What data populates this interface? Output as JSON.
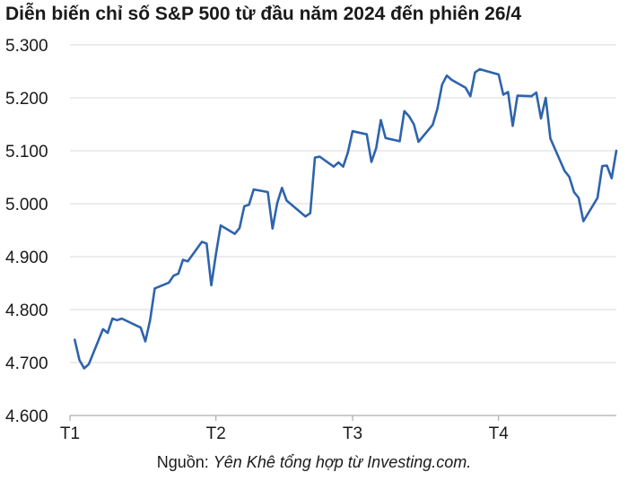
{
  "title": "Diễn biến chỉ số S&P 500 từ đầu năm 2024 đến phiên 26/4",
  "source": {
    "prefix": "Nguồn: ",
    "text": "Yên Khê tổng hợp từ Investing.com."
  },
  "chart_data": {
    "type": "line",
    "title": "Diễn biến chỉ số S&P 500 từ đầu năm 2024 đến phiên 26/4",
    "xlabel": "",
    "ylabel": "",
    "x_ticks": [
      "T1",
      "T2",
      "T3",
      "T4"
    ],
    "x_tick_dates": [
      "2024-01-01",
      "2024-02-01",
      "2024-03-01",
      "2024-04-01"
    ],
    "x_range": [
      "2024-01-01",
      "2024-04-26"
    ],
    "yticks": [
      4600,
      4700,
      4800,
      4900,
      5000,
      5100,
      5200,
      5300
    ],
    "ytick_labels": [
      "4.600",
      "4.700",
      "4.800",
      "4.900",
      "5.000",
      "5.100",
      "5.200",
      "5.300"
    ],
    "ylim": [
      4600,
      5300
    ],
    "grid": "horizontal",
    "line_color": "#2e63ad",
    "series": [
      {
        "x": [
          "2024-01-02",
          "2024-01-03",
          "2024-01-04",
          "2024-01-05",
          "2024-01-08",
          "2024-01-09",
          "2024-01-10",
          "2024-01-11",
          "2024-01-12",
          "2024-01-16",
          "2024-01-17",
          "2024-01-18",
          "2024-01-19",
          "2024-01-22",
          "2024-01-23",
          "2024-01-24",
          "2024-01-25",
          "2024-01-26",
          "2024-01-29",
          "2024-01-30",
          "2024-01-31",
          "2024-02-01",
          "2024-02-02",
          "2024-02-05",
          "2024-02-06",
          "2024-02-07",
          "2024-02-08",
          "2024-02-09",
          "2024-02-12",
          "2024-02-13",
          "2024-02-14",
          "2024-02-15",
          "2024-02-16",
          "2024-02-20",
          "2024-02-21",
          "2024-02-22",
          "2024-02-23",
          "2024-02-26",
          "2024-02-27",
          "2024-02-28",
          "2024-02-29",
          "2024-03-01",
          "2024-03-04",
          "2024-03-05",
          "2024-03-06",
          "2024-03-07",
          "2024-03-08",
          "2024-03-11",
          "2024-03-12",
          "2024-03-13",
          "2024-03-14",
          "2024-03-15",
          "2024-03-18",
          "2024-03-19",
          "2024-03-20",
          "2024-03-21",
          "2024-03-22",
          "2024-03-25",
          "2024-03-26",
          "2024-03-27",
          "2024-03-28",
          "2024-04-01",
          "2024-04-02",
          "2024-04-03",
          "2024-04-04",
          "2024-04-05",
          "2024-04-08",
          "2024-04-09",
          "2024-04-10",
          "2024-04-11",
          "2024-04-12",
          "2024-04-15",
          "2024-04-16",
          "2024-04-17",
          "2024-04-18",
          "2024-04-19",
          "2024-04-22",
          "2024-04-23",
          "2024-04-24",
          "2024-04-25",
          "2024-04-26"
        ],
        "y": [
          4743,
          4705,
          4689,
          4697,
          4763,
          4756,
          4783,
          4780,
          4783,
          4766,
          4740,
          4780,
          4840,
          4851,
          4864,
          4868,
          4894,
          4891,
          4928,
          4925,
          4846,
          4906,
          4959,
          4943,
          4954,
          4995,
          4998,
          5027,
          5022,
          4953,
          5001,
          5030,
          5006,
          4976,
          4982,
          5087,
          5089,
          5070,
          5078,
          5070,
          5097,
          5137,
          5131,
          5079,
          5105,
          5158,
          5124,
          5118,
          5175,
          5165,
          5150,
          5117,
          5149,
          5179,
          5225,
          5242,
          5234,
          5219,
          5203,
          5248,
          5254,
          5244,
          5206,
          5211,
          5147,
          5204,
          5203,
          5210,
          5161,
          5200,
          5123,
          5062,
          5051,
          5022,
          5011,
          4967,
          5011,
          5071,
          5072,
          5048,
          5100
        ]
      }
    ]
  }
}
